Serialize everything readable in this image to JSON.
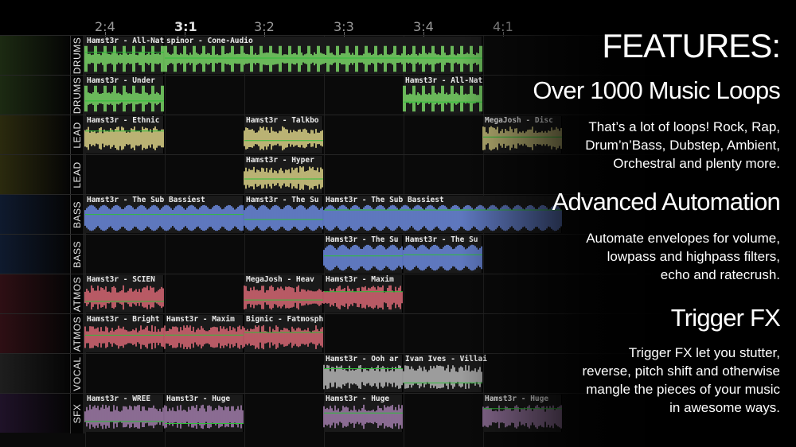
{
  "timeline": {
    "bars": [
      {
        "label": "2:4",
        "major": false
      },
      {
        "label": "3:1",
        "major": true
      },
      {
        "label": "3:2",
        "major": false
      },
      {
        "label": "3:3",
        "major": false
      },
      {
        "label": "3:4",
        "major": false
      },
      {
        "label": "4:1",
        "major": false
      }
    ]
  },
  "tracks": [
    {
      "label": "DRUMS",
      "color": "#1c2a12",
      "clips": [
        {
          "name": "Hamst3r - All-Nati",
          "color": "#7ee06a",
          "start": 0,
          "len": 1
        },
        {
          "name": "spinor - Cone-Audio",
          "color": "#7ee06a",
          "start": 1,
          "len": 4
        }
      ]
    },
    {
      "label": "DRUMS",
      "color": "#1c2a12",
      "clips": [
        {
          "name": "Hamst3r - Under",
          "color": "#7ee06a",
          "start": 0,
          "len": 1
        },
        {
          "name": "Hamst3r - All-Nat",
          "color": "#7ee06a",
          "start": 4,
          "len": 1
        }
      ]
    },
    {
      "label": "LEAD",
      "color": "#2b2a0e",
      "clips": [
        {
          "name": "Hamst3r - Ethnic",
          "color": "#e3d98a",
          "start": 0,
          "len": 1
        },
        {
          "name": "Hamst3r - Talkbo",
          "color": "#e3d98a",
          "start": 2,
          "len": 1
        },
        {
          "name": "MegaJosh - Disc",
          "color": "#e3d98a",
          "start": 5,
          "len": 1
        }
      ]
    },
    {
      "label": "LEAD",
      "color": "#2b2a0e",
      "clips": [
        {
          "name": "Hamst3r - Hyper",
          "color": "#e3d98a",
          "start": 2,
          "len": 1
        }
      ]
    },
    {
      "label": "BASS",
      "color": "#0f1a2e",
      "clips": [
        {
          "name": "Hamst3r - The Sub Bassiest",
          "color": "#6f8fe8",
          "start": 0,
          "len": 2
        },
        {
          "name": "Hamst3r - The Su",
          "color": "#6f8fe8",
          "start": 2,
          "len": 1
        },
        {
          "name": "Hamst3r - The Sub Bassiest",
          "color": "#6f8fe8",
          "start": 3,
          "len": 3
        }
      ]
    },
    {
      "label": "BASS",
      "color": "#0f1a2e",
      "clips": [
        {
          "name": "Hamst3r - The Su",
          "color": "#6f8fe8",
          "start": 3,
          "len": 1
        },
        {
          "name": "Hamst3r - The Su",
          "color": "#6f8fe8",
          "start": 4,
          "len": 1
        }
      ]
    },
    {
      "label": "ATMOS",
      "color": "#2e0f14",
      "clips": [
        {
          "name": "Hamst3r - SCIEN",
          "color": "#e06a78",
          "start": 0,
          "len": 1
        },
        {
          "name": "MegaJosh - Heav",
          "color": "#e06a78",
          "start": 2,
          "len": 1
        },
        {
          "name": "Hamst3r - Maxim",
          "color": "#e06a78",
          "start": 3,
          "len": 1
        }
      ]
    },
    {
      "label": "ATMOS",
      "color": "#2e0f14",
      "clips": [
        {
          "name": "Hamst3r - Bright",
          "color": "#e06a78",
          "start": 0,
          "len": 1
        },
        {
          "name": "Hamst3r - Maxim",
          "color": "#e06a78",
          "start": 1,
          "len": 1
        },
        {
          "name": "Bignic - Fatmosph",
          "color": "#e06a78",
          "start": 2,
          "len": 1
        }
      ]
    },
    {
      "label": "VOCAL",
      "color": "#1e1e1e",
      "clips": [
        {
          "name": "Hamst3r - Ooh ar",
          "color": "#bdbdbd",
          "start": 3,
          "len": 1
        },
        {
          "name": "Ivan Ives - Villai",
          "color": "#bdbdbd",
          "start": 4,
          "len": 1
        }
      ]
    },
    {
      "label": "SFX",
      "color": "#1f1228",
      "clips": [
        {
          "name": "Hamst3r - WREE",
          "color": "#a680b0",
          "start": 0,
          "len": 1
        },
        {
          "name": "Hamst3r - Huge",
          "color": "#a680b0",
          "start": 1,
          "len": 1
        },
        {
          "name": "Hamst3r - Huge",
          "color": "#a680b0",
          "start": 3,
          "len": 1
        },
        {
          "name": "Hamst3r - Huge",
          "color": "#a680b0",
          "start": 5,
          "len": 1
        }
      ]
    }
  ],
  "panel": {
    "heading": "FEATURES:",
    "features": [
      {
        "title": "Over 1000 Music Loops",
        "desc": "That’s a lot of loops! Rock, Rap,\nDrum’n’Bass, Dubstep, Ambient,\nOrchestral and plenty more."
      },
      {
        "title": "Advanced Automation",
        "desc": "Automate envelopes for volume,\nlowpass and highpass filters,\necho and ratecrush."
      },
      {
        "title": "Trigger FX",
        "desc": "Trigger FX let you stutter,\nreverse, pitch shift and otherwise\nmangle the pieces of your music\nin awesome ways."
      }
    ]
  },
  "colors": {
    "automation": "#2fbf3a",
    "background": "#000000"
  }
}
